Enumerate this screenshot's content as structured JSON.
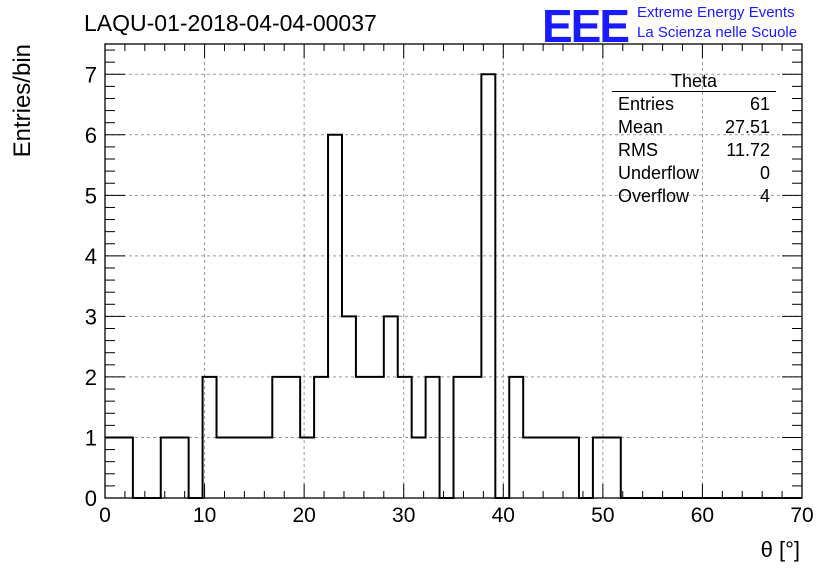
{
  "header": {
    "title": "LAQU-01-2018-04-04-00037",
    "logo_letters": "EEE",
    "logo_line1": "Extreme Energy Events",
    "logo_line2": "La Scienza nelle Scuole"
  },
  "colors": {
    "logo": "#1a1aff",
    "grid": "#999999",
    "line": "#000000"
  },
  "stats": {
    "name": "Theta",
    "rows": [
      {
        "label": "Entries",
        "value": "61"
      },
      {
        "label": "Mean",
        "value": "27.51"
      },
      {
        "label": "RMS",
        "value": "11.72"
      },
      {
        "label": "Underflow",
        "value": "0"
      },
      {
        "label": "Overflow",
        "value": "4"
      }
    ]
  },
  "chart_data": {
    "type": "histogram",
    "xlabel": "θ [°]",
    "ylabel": "Entries/bin",
    "xlim": [
      0,
      70
    ],
    "ylim": [
      0,
      7.5
    ],
    "bin_width": 1.4,
    "values": [
      1,
      1,
      0,
      0,
      1,
      1,
      0,
      2,
      1,
      1,
      1,
      1,
      2,
      2,
      1,
      2,
      6,
      3,
      2,
      2,
      3,
      2,
      1,
      2,
      0,
      2,
      2,
      7,
      0,
      2,
      1,
      1,
      1,
      1,
      0,
      1,
      1,
      0,
      0,
      0,
      0,
      0,
      0,
      0,
      0,
      0,
      0,
      0,
      0,
      0
    ],
    "xticks": [
      "0",
      "10",
      "20",
      "30",
      "40",
      "50",
      "60",
      "70"
    ],
    "yticks": [
      "0",
      "1",
      "2",
      "3",
      "4",
      "5",
      "6",
      "7"
    ],
    "grid": true,
    "legend": "top-right"
  }
}
